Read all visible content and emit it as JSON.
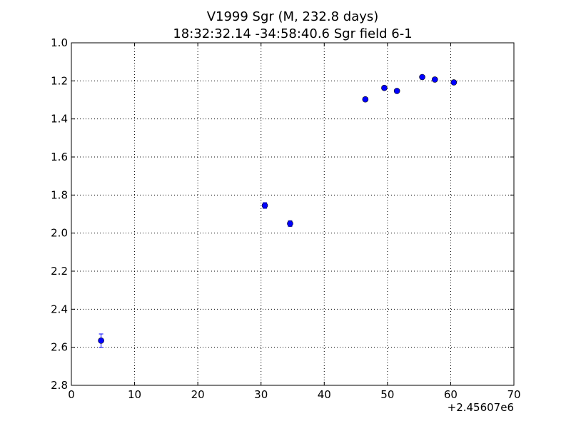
{
  "chart_data": {
    "type": "scatter",
    "title": "V1999 Sgr  (M, 232.8 days)",
    "subtitle": "18:32:32.14 -34:58:40.6 Sgr field 6-1",
    "xlabel": "",
    "ylabel": "",
    "x_offset_label": "+2.45607e6",
    "xlim": [
      0,
      70
    ],
    "ylim": [
      2.8,
      1.0
    ],
    "y_inverted": true,
    "grid": true,
    "x_ticks": [
      "0",
      "10",
      "20",
      "30",
      "40",
      "50",
      "60",
      "70"
    ],
    "y_ticks": [
      "1.0",
      "1.2",
      "1.4",
      "1.6",
      "1.8",
      "2.0",
      "2.2",
      "2.4",
      "2.6",
      "2.8"
    ],
    "marker_color": "#0000ff",
    "series": [
      {
        "points": [
          {
            "x": 4.7,
            "y": 2.565,
            "err": 0.035
          },
          {
            "x": 30.6,
            "y": 1.855,
            "err": 0.015
          },
          {
            "x": 34.6,
            "y": 1.95,
            "err": 0.015
          },
          {
            "x": 46.5,
            "y": 1.297,
            "err": 0.01
          },
          {
            "x": 49.5,
            "y": 1.237,
            "err": 0.01
          },
          {
            "x": 51.5,
            "y": 1.253,
            "err": 0.01
          },
          {
            "x": 55.5,
            "y": 1.18,
            "err": 0.008
          },
          {
            "x": 57.5,
            "y": 1.193,
            "err": 0.008
          },
          {
            "x": 60.5,
            "y": 1.208,
            "err": 0.008
          }
        ]
      }
    ]
  }
}
